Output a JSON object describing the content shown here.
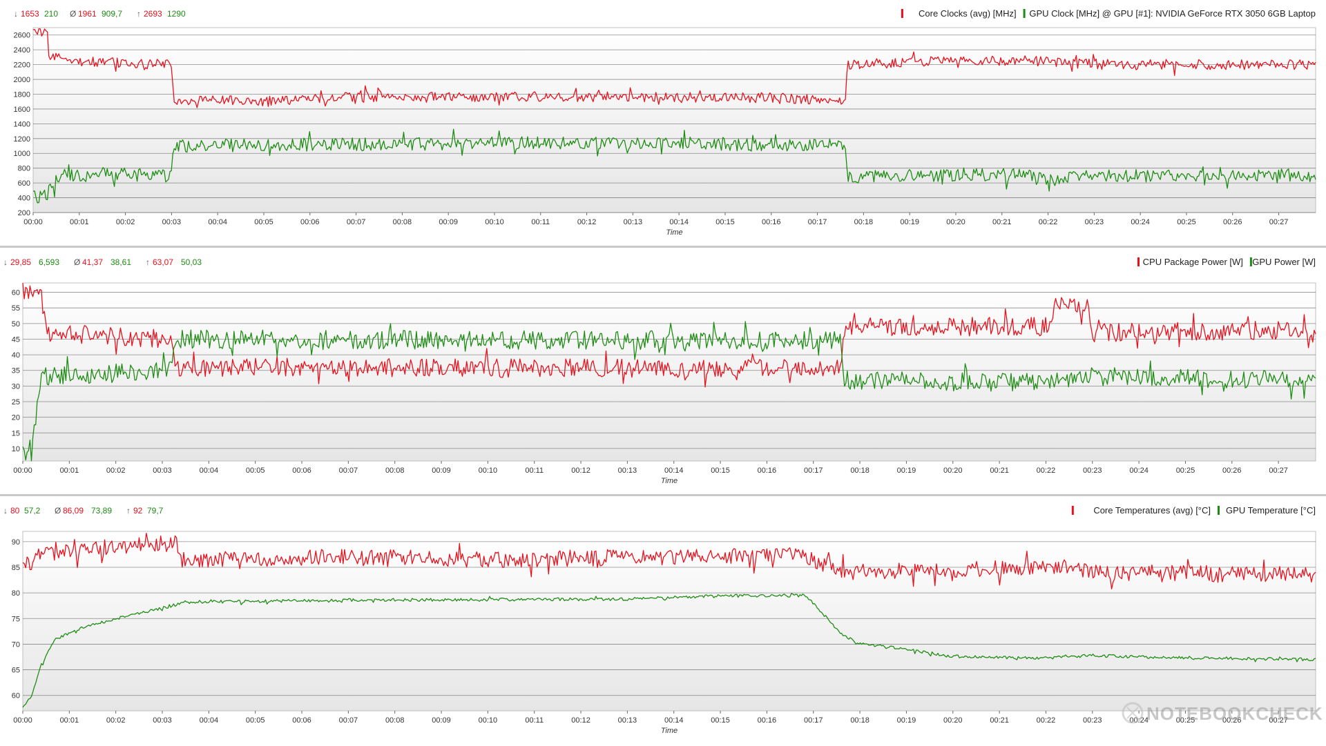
{
  "colors": {
    "red": "#e8101c",
    "green": "#1d8c13",
    "grid": "#d0d0d0",
    "text": "#333333",
    "separator": "#c8c8c8"
  },
  "watermark": {
    "text": "NOTEBOOKCHECK"
  },
  "chart_data": [
    {
      "type": "line",
      "stats": {
        "min": {
          "red": "1653",
          "green": "210"
        },
        "avg": {
          "red": "1961",
          "green": "909,7"
        },
        "max": {
          "red": "2693",
          "green": "1290"
        }
      },
      "legend": [
        "Core Clocks (avg) [MHz]",
        "GPU Clock [MHz] @ GPU [#1]: NVIDIA GeForce RTX 3050 6GB Laptop"
      ],
      "xlabel": "Time",
      "ylabel": "",
      "ylim": [
        200,
        2700
      ],
      "yticks": [
        "200",
        "400",
        "600",
        "800",
        "1000",
        "1200",
        "1400",
        "1600",
        "1800",
        "2000",
        "2200",
        "2400",
        "2600"
      ],
      "xticks": [
        "00:00",
        "00:01",
        "00:02",
        "00:03",
        "00:04",
        "00:05",
        "00:06",
        "00:07",
        "00:08",
        "00:09",
        "00:10",
        "00:11",
        "00:12",
        "00:13",
        "00:14",
        "00:15",
        "00:16",
        "00:17",
        "00:18",
        "00:19",
        "00:20",
        "00:21",
        "00:22",
        "00:23",
        "00:24",
        "00:25",
        "00:26",
        "00:27"
      ],
      "xlim_minutes": [
        0,
        27.8
      ],
      "grid": true,
      "legend_position": "top-right",
      "series": [
        {
          "color": "red",
          "noise": 70,
          "points": [
            [
              0,
              2640
            ],
            [
              0.3,
              2650
            ],
            [
              0.35,
              2300
            ],
            [
              0.8,
              2250
            ],
            [
              3.0,
              2200
            ],
            [
              3.05,
              1720
            ],
            [
              5.0,
              1700
            ],
            [
              7.0,
              1760
            ],
            [
              10.0,
              1770
            ],
            [
              13.5,
              1760
            ],
            [
              13.9,
              1740
            ],
            [
              14.1,
              1760
            ],
            [
              17.6,
              1730
            ],
            [
              17.65,
              2200
            ],
            [
              19.5,
              2250
            ],
            [
              22,
              2250
            ],
            [
              23,
              2200
            ],
            [
              27.8,
              2200
            ]
          ]
        },
        {
          "color": "green",
          "noise": 90,
          "points": [
            [
              0,
              400
            ],
            [
              0.3,
              450
            ],
            [
              0.6,
              700
            ],
            [
              1.5,
              720
            ],
            [
              3.0,
              700
            ],
            [
              3.05,
              1100
            ],
            [
              10,
              1140
            ],
            [
              13.5,
              1140
            ],
            [
              17.6,
              1100
            ],
            [
              17.65,
              680
            ],
            [
              19.5,
              700
            ],
            [
              21.9,
              710
            ],
            [
              22,
              620
            ],
            [
              23,
              700
            ],
            [
              27.8,
              700
            ]
          ]
        }
      ]
    },
    {
      "type": "line",
      "stats": {
        "min": {
          "red": "29,85",
          "green": "6,593"
        },
        "avg": {
          "red": "41,37",
          "green": "38,61"
        },
        "max": {
          "red": "63,07",
          "green": "50,03"
        }
      },
      "legend": [
        "CPU Package Power [W]",
        "GPU Power [W]"
      ],
      "xlabel": "Time",
      "ylabel": "",
      "ylim": [
        6,
        63
      ],
      "yticks": [
        "10",
        "15",
        "20",
        "25",
        "30",
        "35",
        "40",
        "45",
        "50",
        "55",
        "60"
      ],
      "xticks": [
        "00:00",
        "00:01",
        "00:02",
        "00:03",
        "00:04",
        "00:05",
        "00:06",
        "00:07",
        "00:08",
        "00:09",
        "00:10",
        "00:11",
        "00:12",
        "00:13",
        "00:14",
        "00:15",
        "00:16",
        "00:17",
        "00:18",
        "00:19",
        "00:20",
        "00:21",
        "00:22",
        "00:23",
        "00:24",
        "00:25",
        "00:26",
        "00:27"
      ],
      "xlim_minutes": [
        0,
        27.8
      ],
      "grid": true,
      "legend_position": "top-right",
      "series": [
        {
          "color": "red",
          "noise": 3,
          "points": [
            [
              0,
              60
            ],
            [
              0.4,
              59
            ],
            [
              0.5,
              47
            ],
            [
              3.2,
              45
            ],
            [
              3.3,
              36
            ],
            [
              17.6,
              35.5
            ],
            [
              17.65,
              49
            ],
            [
              22,
              49
            ],
            [
              22.2,
              56
            ],
            [
              22.9,
              54
            ],
            [
              23,
              47
            ],
            [
              27.8,
              48
            ]
          ]
        },
        {
          "color": "green",
          "noise": 3,
          "points": [
            [
              0,
              9
            ],
            [
              0.2,
              10
            ],
            [
              0.4,
              33
            ],
            [
              3.2,
              35
            ],
            [
              3.3,
              45
            ],
            [
              17.6,
              44.5
            ],
            [
              17.65,
              32
            ],
            [
              22,
              31
            ],
            [
              23,
              33
            ],
            [
              27.8,
              32
            ]
          ]
        }
      ]
    },
    {
      "type": "line",
      "stats": {
        "min": {
          "red": "80",
          "green": "57,2"
        },
        "avg": {
          "red": "86,09",
          "green": "73,89"
        },
        "max": {
          "red": "92",
          "green": "79,7"
        }
      },
      "legend": [
        "Core Temperatures (avg) [°C]",
        "GPU Temperature [°C]"
      ],
      "xlabel": "Time",
      "ylabel": "",
      "ylim": [
        57,
        92
      ],
      "yticks": [
        "60",
        "65",
        "70",
        "75",
        "80",
        "85",
        "90"
      ],
      "xticks": [
        "00:00",
        "00:01",
        "00:02",
        "00:03",
        "00:04",
        "00:05",
        "00:06",
        "00:07",
        "00:08",
        "00:09",
        "00:10",
        "00:11",
        "00:12",
        "00:13",
        "00:14",
        "00:15",
        "00:16",
        "00:17",
        "00:18",
        "00:19",
        "00:20",
        "00:21",
        "00:22",
        "00:23",
        "00:24",
        "00:25",
        "00:26",
        "00:27"
      ],
      "xlim_minutes": [
        0,
        27.8
      ],
      "grid": true,
      "legend_position": "top-right",
      "series": [
        {
          "color": "red",
          "noise": 1.6,
          "points": [
            [
              0,
              85
            ],
            [
              0.5,
              88
            ],
            [
              2,
              89
            ],
            [
              3.3,
              90
            ],
            [
              3.4,
              86.5
            ],
            [
              7,
              87
            ],
            [
              10,
              86.5
            ],
            [
              13.5,
              87
            ],
            [
              16.8,
              87.5
            ],
            [
              17.6,
              84
            ],
            [
              19,
              84.5
            ],
            [
              22,
              85
            ],
            [
              23,
              84
            ],
            [
              27.8,
              83.5
            ]
          ]
        },
        {
          "color": "green",
          "noise": 0.3,
          "points": [
            [
              0,
              57.5
            ],
            [
              0.2,
              60
            ],
            [
              0.4,
              66
            ],
            [
              0.7,
              71
            ],
            [
              1.2,
              73
            ],
            [
              2,
              75
            ],
            [
              3,
              77
            ],
            [
              3.5,
              78.2
            ],
            [
              7,
              78.6
            ],
            [
              10,
              78.7
            ],
            [
              13,
              78.8
            ],
            [
              15,
              79.4
            ],
            [
              16.8,
              79.5
            ],
            [
              17,
              78
            ],
            [
              17.6,
              72
            ],
            [
              18,
              70
            ],
            [
              18.8,
              69.2
            ],
            [
              20,
              67.6
            ],
            [
              22,
              67.3
            ],
            [
              23,
              67.8
            ],
            [
              24,
              67.5
            ],
            [
              27.8,
              67
            ]
          ]
        }
      ]
    }
  ]
}
